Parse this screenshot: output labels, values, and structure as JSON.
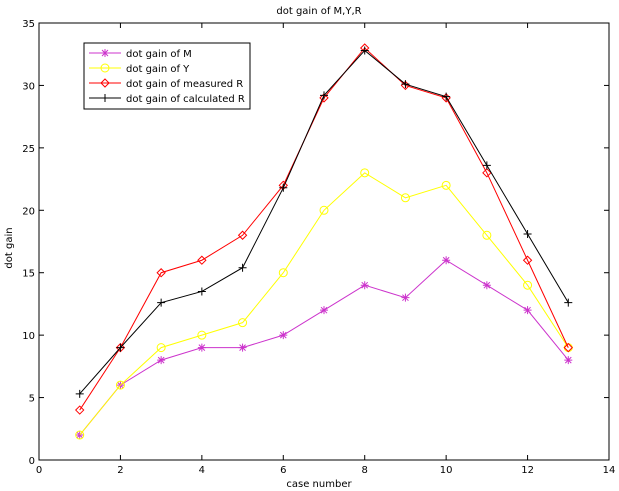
{
  "chart_data": {
    "type": "line",
    "title": "dot gain of M,Y,R",
    "xlabel": "case number",
    "ylabel": "dot gain",
    "xlim": [
      0,
      14
    ],
    "ylim": [
      0,
      35
    ],
    "xticks": [
      0,
      2,
      4,
      6,
      8,
      10,
      12,
      14
    ],
    "yticks": [
      0,
      5,
      10,
      15,
      20,
      25,
      30,
      35
    ],
    "grid": false,
    "legend_position": "top-left",
    "x": [
      1,
      2,
      3,
      4,
      5,
      6,
      7,
      8,
      9,
      10,
      11,
      12,
      13
    ],
    "series": [
      {
        "name": "dot gain of M",
        "color": "#cc33cc",
        "marker": "asterisk",
        "values": [
          2,
          6,
          8,
          9,
          9,
          10,
          12,
          14,
          13,
          16,
          14,
          12,
          8
        ]
      },
      {
        "name": "dot gain of Y",
        "color": "#ffff00",
        "marker": "circle",
        "values": [
          2,
          6,
          9,
          10,
          11,
          15,
          20,
          23,
          21,
          22,
          18,
          14,
          9
        ]
      },
      {
        "name": "dot gain of measured R",
        "color": "#ff0000",
        "marker": "diamond",
        "values": [
          4,
          9,
          15,
          16,
          18,
          22,
          29,
          33,
          30,
          29,
          23,
          16,
          9
        ]
      },
      {
        "name": "dot gain of calculated R",
        "color": "#000000",
        "marker": "plus",
        "values": [
          5.3,
          9,
          12.6,
          13.5,
          15.4,
          21.8,
          29.2,
          32.8,
          30.1,
          29.1,
          23.6,
          18.1,
          12.6
        ]
      }
    ]
  }
}
